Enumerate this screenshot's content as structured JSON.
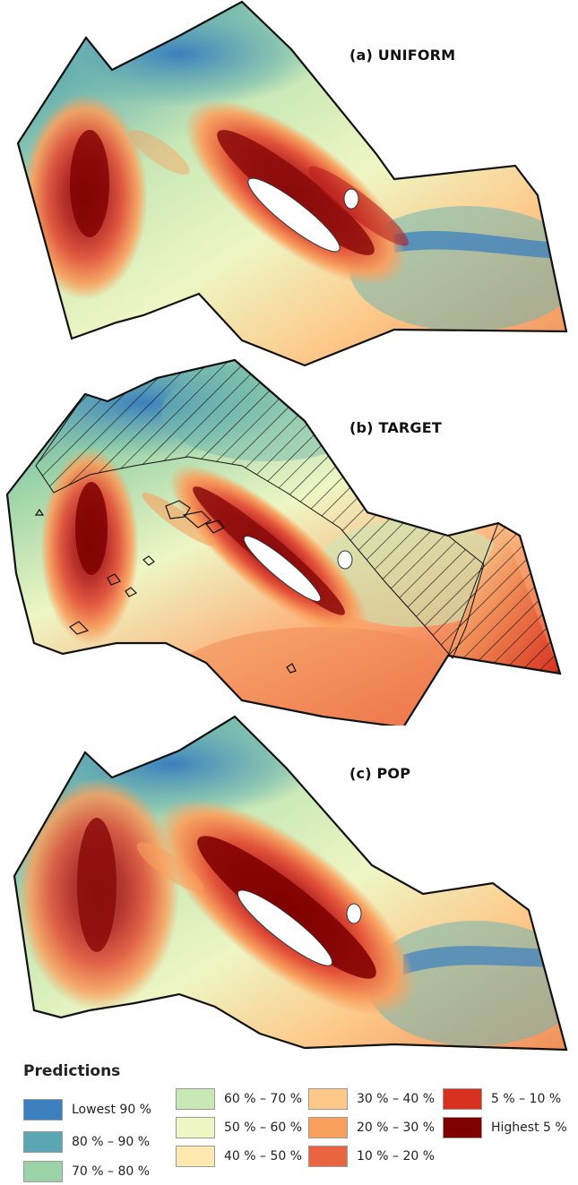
{
  "panels": [
    {
      "id": "uniform",
      "title": "(a) UNIFORM"
    },
    {
      "id": "target",
      "title": "(b) TARGET"
    },
    {
      "id": "pop",
      "title": "(c) POP"
    }
  ],
  "legend": {
    "title": "Predictions",
    "items": [
      {
        "label": "Lowest 90 %",
        "color": "#3b7fbf"
      },
      {
        "label": "80 % – 90 %",
        "color": "#5aa6b3"
      },
      {
        "label": "70 % – 80 %",
        "color": "#9ad3a8"
      },
      {
        "label": "60 % – 70 %",
        "color": "#c8e8b6"
      },
      {
        "label": "50 % – 60 %",
        "color": "#eef6c4"
      },
      {
        "label": "40 % – 50 %",
        "color": "#fde9b0"
      },
      {
        "label": "30 % – 40 %",
        "color": "#fdc98a"
      },
      {
        "label": "20 % – 30 %",
        "color": "#f9a05e"
      },
      {
        "label": "10 % – 20 %",
        "color": "#ea6442"
      },
      {
        "label": "5 % – 10 %",
        "color": "#d7301f"
      },
      {
        "label": "Highest 5 %",
        "color": "#7f0000"
      }
    ]
  }
}
